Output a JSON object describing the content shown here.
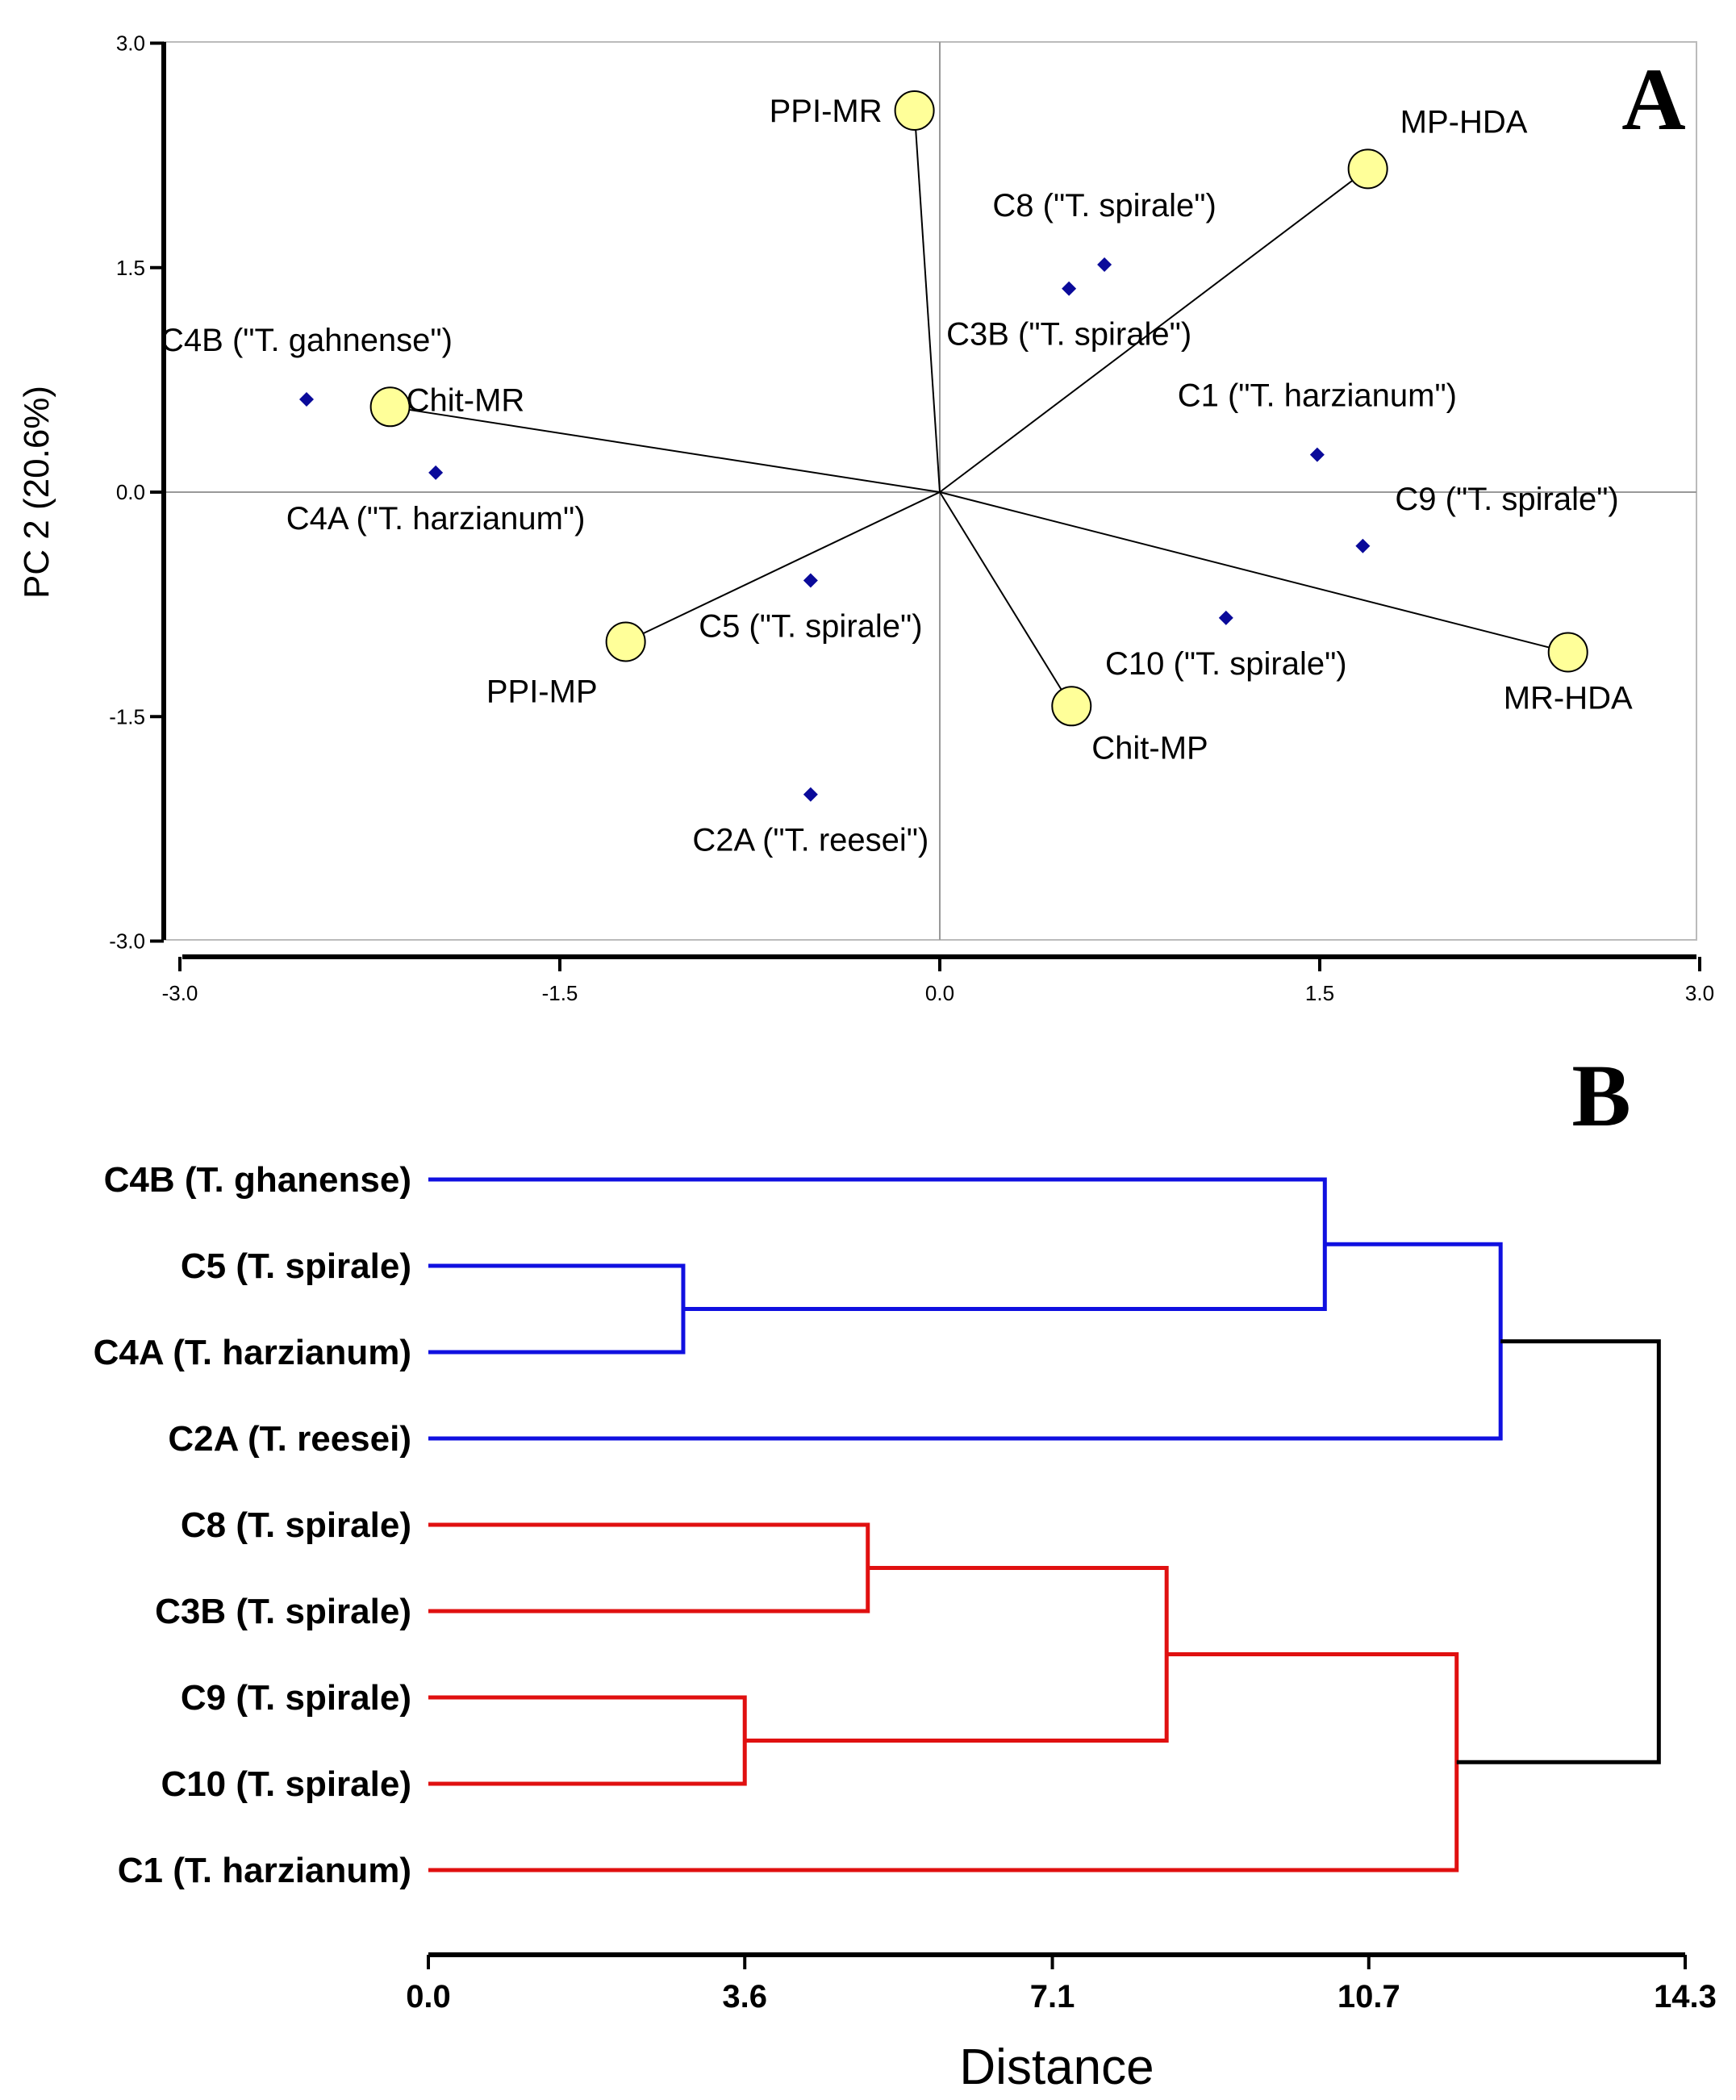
{
  "chart_data": [
    {
      "type": "scatter",
      "panel_label": "A",
      "title": "",
      "xlabel": "",
      "ylabel": "PC 2 (20.6%)",
      "xlim": [
        -3.0,
        3.0
      ],
      "ylim": [
        -3.0,
        3.0
      ],
      "x_ticks": [
        "-3.0",
        "-1.5",
        "0.0",
        "1.5",
        "3.0"
      ],
      "y_ticks": [
        "3.0",
        "1.5",
        "0.0",
        "-1.5",
        "-3.0"
      ],
      "series": [
        {
          "name": "isolates",
          "color": "#0a0a9a",
          "points": [
            {
              "label": "C4B (\"T. gahnense\")",
              "x": -2.5,
              "y": 0.62,
              "label_pos": "above"
            },
            {
              "label": "C4A (\"T. harzianum\")",
              "x": -1.99,
              "y": 0.13,
              "label_pos": "below"
            },
            {
              "label": "C8 (\"T. spirale\")",
              "x": 0.65,
              "y": 1.52,
              "label_pos": "above"
            },
            {
              "label": "C3B (\"T. spirale\")",
              "x": 0.51,
              "y": 1.36,
              "label_pos": "below"
            },
            {
              "label": "C1 (\"T. harzianum\")",
              "x": 1.49,
              "y": 0.25,
              "label_pos": "above"
            },
            {
              "label": "C9 (\"T. spirale\")",
              "x": 1.67,
              "y": -0.36,
              "label_pos": "above-right"
            },
            {
              "label": "C10 (\"T. spirale\")",
              "x": 1.13,
              "y": -0.84,
              "label_pos": "below"
            },
            {
              "label": "C5 (\"T. spirale\")",
              "x": -0.51,
              "y": -0.59,
              "label_pos": "below"
            },
            {
              "label": "C2A (\"T. reesei\")",
              "x": -0.51,
              "y": -2.02,
              "label_pos": "below"
            }
          ]
        },
        {
          "name": "variables",
          "color": "#ffff99",
          "points": [
            {
              "label": "PPI-MR",
              "x": -0.1,
              "y": 2.55,
              "label_pos": "left"
            },
            {
              "label": "MP-HDA",
              "x": 1.69,
              "y": 2.16,
              "label_pos": "above-right"
            },
            {
              "label": "Chit-MR",
              "x": -2.17,
              "y": 0.57,
              "label_pos": "right"
            },
            {
              "label": "PPI-MP",
              "x": -1.24,
              "y": -1.0,
              "label_pos": "below-left"
            },
            {
              "label": "Chit-MP",
              "x": 0.52,
              "y": -1.43,
              "label_pos": "below-right"
            },
            {
              "label": "MR-HDA",
              "x": 2.48,
              "y": -1.07,
              "label_pos": "below"
            }
          ]
        }
      ]
    },
    {
      "type": "dendrogram",
      "panel_label": "B",
      "xlabel": "Distance",
      "xlim": [
        0.0,
        14.3
      ],
      "x_ticks": [
        "0.0",
        "3.6",
        "7.1",
        "10.7",
        "14.3"
      ],
      "leaves": [
        "C4B (T. ghanense)",
        "C5 (T. spirale)",
        "C4A (T. harzianum)",
        "C2A (T. reesei)",
        "C8 (T. spirale)",
        "C3B (T. spirale)",
        "C9 (T. spirale)",
        "C10 (T. spirale)",
        "C1 (T. harzianum)"
      ],
      "merges": [
        {
          "left": 1,
          "right": 2,
          "distance": 2.9,
          "color": "#1010e0"
        },
        {
          "left": 0,
          "right": "m0",
          "distance": 10.2,
          "color": "#1010e0"
        },
        {
          "left": "m1",
          "right": 3,
          "distance": 12.2,
          "color": "#1010e0"
        },
        {
          "left": 4,
          "right": 5,
          "distance": 5.0,
          "color": "#e01010"
        },
        {
          "left": 6,
          "right": 7,
          "distance": 3.6,
          "color": "#e01010"
        },
        {
          "left": "m3",
          "right": "m4",
          "distance": 8.4,
          "color": "#e01010"
        },
        {
          "left": "m5",
          "right": 8,
          "distance": 11.7,
          "color": "#e01010"
        },
        {
          "left": "m2",
          "right": "m6",
          "distance": 14.0,
          "color": "#000000"
        }
      ]
    }
  ]
}
